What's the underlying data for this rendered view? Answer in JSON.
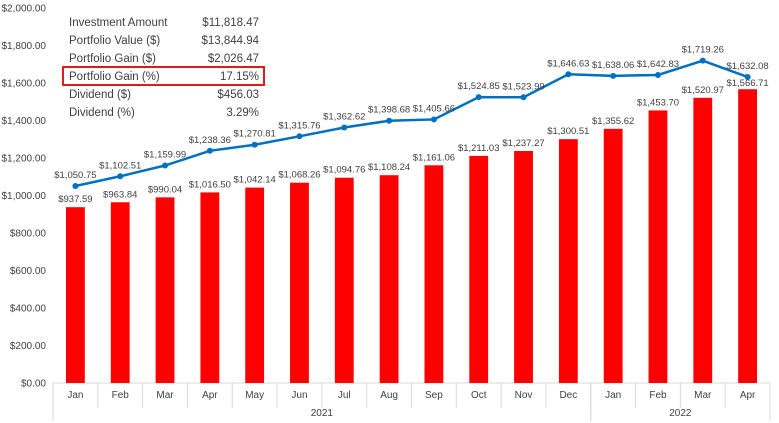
{
  "chart_data": {
    "type": "bar",
    "categories": [
      "Jan",
      "Feb",
      "Mar",
      "Apr",
      "May",
      "Jun",
      "Jul",
      "Aug",
      "Sep",
      "Oct",
      "Nov",
      "Dec",
      "Jan",
      "Feb",
      "Mar",
      "Apr"
    ],
    "year_groups": [
      {
        "label": "2021",
        "start": 0,
        "end": 11
      },
      {
        "label": "2022",
        "start": 12,
        "end": 15
      }
    ],
    "series": [
      {
        "type": "bar",
        "color": "#ff0000",
        "values": [
          937.59,
          963.84,
          990.04,
          1016.5,
          1042.14,
          1068.26,
          1094.76,
          1108.24,
          1161.06,
          1211.03,
          1237.27,
          1300.51,
          1355.62,
          1453.7,
          1520.97,
          1566.71
        ],
        "labels": [
          "$937.59",
          "$963.84",
          "$990.04",
          "$1,016.50",
          "$1,042.14",
          "$1,068.26",
          "$1,094.76",
          "$1,108.24",
          "$1,161.06",
          "$1,211.03",
          "$1,237.27",
          "$1,300.51",
          "$1,355.62",
          "$1,453.70",
          "$1,520.97",
          "$1,566.71"
        ]
      },
      {
        "type": "line",
        "color": "#0070c0",
        "values": [
          1050.75,
          1102.51,
          1159.99,
          1238.36,
          1270.81,
          1315.76,
          1362.62,
          1398.68,
          1405.66,
          1524.85,
          1523.99,
          1646.63,
          1638.06,
          1642.83,
          1719.26,
          1632.08
        ],
        "labels": [
          "$1,050.75",
          "$1,102.51",
          "$1,159.99",
          "$1,238.36",
          "$1,270.81",
          "$1,315.76",
          "$1,362.62",
          "$1,398.68",
          "$1,405.66",
          "$1,524.85",
          "$1,523.99",
          "$1,646.63",
          "$1,638.06",
          "$1,642.83",
          "$1,719.26",
          "$1,632.08"
        ]
      }
    ],
    "ylim": [
      0,
      2000
    ],
    "yticks": [
      0,
      200,
      400,
      600,
      800,
      1000,
      1200,
      1400,
      1600,
      1800,
      2000
    ],
    "ytick_labels": [
      "$0.00",
      "$200.00",
      "$400.00",
      "$600.00",
      "$800.00",
      "$1,000.00",
      "$1,200.00",
      "$1,400.00",
      "$1,600.00",
      "$1,800.00",
      "$2,000.00"
    ],
    "grid": false,
    "summary": [
      {
        "label": "Investment Amount",
        "value": "$11,818.47",
        "highlight": false
      },
      {
        "label": "Portfolio Value ($)",
        "value": "$13,844.94",
        "highlight": false
      },
      {
        "label": "Portfolio Gain ($)",
        "value": "$2,026.47",
        "highlight": false
      },
      {
        "label": "Portfolio Gain (%)",
        "value": "17.15%",
        "highlight": true
      },
      {
        "label": "Dividend ($)",
        "value": "$456.03",
        "highlight": false
      },
      {
        "label": "Dividend (%)",
        "value": "3.29%",
        "highlight": false
      }
    ],
    "highlight_color": "#e31a1c"
  }
}
